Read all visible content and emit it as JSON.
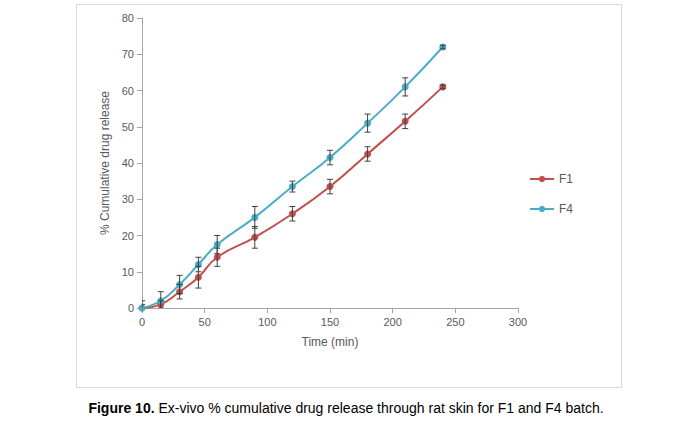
{
  "chart_data": {
    "type": "line",
    "caption": "Figure 10. Ex-vivo % cumulative drug release through rat skin for F1 and F4 batch.",
    "x_label": "Time (min)",
    "y_label": "% Cumulative drug release",
    "x": [
      0,
      15,
      30,
      45,
      60,
      90,
      120,
      150,
      180,
      210,
      240
    ],
    "series": [
      {
        "name": "F1",
        "color": "#c0504d",
        "marker": "circle",
        "line_style": "solid",
        "values": [
          0,
          1,
          4.5,
          8.5,
          14,
          19.5,
          26,
          33.5,
          42.5,
          51.5,
          61
        ],
        "error": [
          1,
          1,
          2,
          3,
          2.5,
          3,
          2,
          2,
          2,
          2,
          0.5
        ]
      },
      {
        "name": "F4",
        "color": "#4bacc6",
        "marker": "circle",
        "line_style": "solid",
        "values": [
          0,
          2,
          6.5,
          12,
          17.5,
          25,
          33.5,
          41.5,
          51,
          61,
          72
        ],
        "error": [
          2,
          2.5,
          2.5,
          2,
          2.5,
          3,
          1.5,
          2,
          2.5,
          2.5,
          0.5
        ]
      }
    ],
    "xlim": [
      0,
      300
    ],
    "xticks": [
      0,
      50,
      100,
      150,
      200,
      250,
      300
    ],
    "ylim": [
      0,
      80
    ],
    "yticks": [
      0,
      10,
      20,
      30,
      40,
      50,
      60,
      70,
      80
    ],
    "grid": false,
    "legend": "right"
  }
}
